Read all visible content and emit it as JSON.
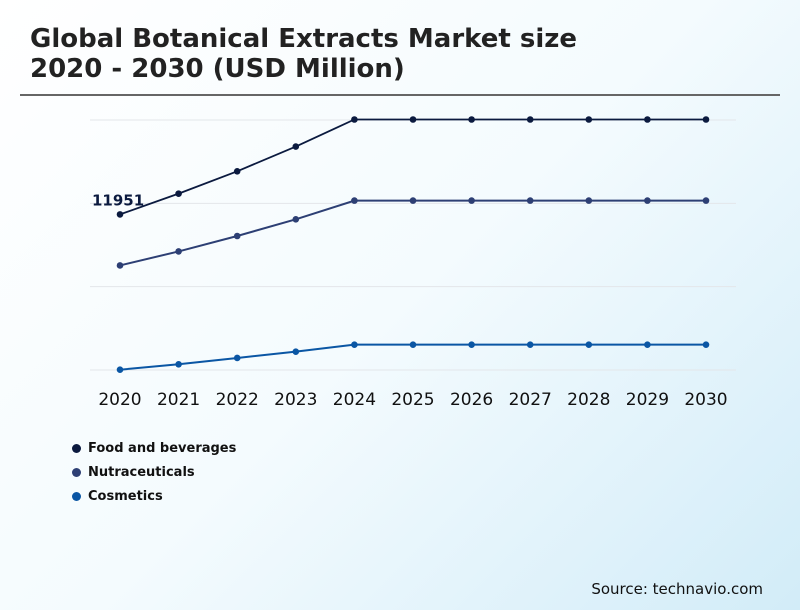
{
  "title_line1": "Global Botanical Extracts Market size",
  "title_line2": "2020 - 2030 (USD Million)",
  "source": "Source: technavio.com",
  "chart_data": {
    "type": "line",
    "title": "Global Botanical Extracts Market size 2020 - 2030 (USD Million)",
    "categories": [
      "2020",
      "2021",
      "2022",
      "2023",
      "2024",
      "2025",
      "2026",
      "2027",
      "2028",
      "2029",
      "2030"
    ],
    "ylim": [
      0,
      19200
    ],
    "grid": true,
    "legend": "bottom-left",
    "data_label": "11951",
    "series": [
      {
        "name": "Food and beverages",
        "color": "#0b1a3f",
        "values": [
          11951,
          13544,
          15260,
          17161,
          19239,
          19239,
          19239,
          19239,
          19239,
          19239,
          19239
        ]
      },
      {
        "name": "Nutraceuticals",
        "color": "#2d3f74",
        "values": [
          8030,
          9107,
          10292,
          11570,
          13009,
          13009,
          13009,
          13009,
          13009,
          13009,
          13009
        ]
      },
      {
        "name": "Cosmetics",
        "color": "#0a56a4",
        "values": [
          23,
          439,
          924,
          1409,
          1947,
          1947,
          1947,
          1947,
          1947,
          1947,
          1947
        ]
      }
    ]
  }
}
